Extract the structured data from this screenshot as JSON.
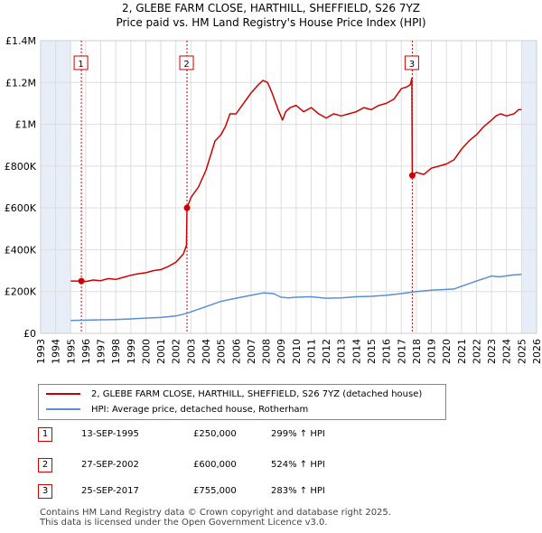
{
  "title_line1": "2, GLEBE FARM CLOSE, HARTHILL, SHEFFIELD, S26 7YZ",
  "title_line2": "Price paid vs. HM Land Registry's House Price Index (HPI)",
  "legend": {
    "property_label": "2, GLEBE FARM CLOSE, HARTHILL, SHEFFIELD, S26 7YZ (detached house)",
    "hpi_label": "HPI: Average price, detached house, Rotherham"
  },
  "colors": {
    "property": "#cc0000",
    "hpi": "#5b8fd0",
    "grid": "#dddddd",
    "band": "#e8eef7"
  },
  "sales": [
    {
      "num": "1",
      "date": "13-SEP-1995",
      "price": "£250,000",
      "hpi": "299% ↑ HPI"
    },
    {
      "num": "2",
      "date": "27-SEP-2002",
      "price": "£600,000",
      "hpi": "524% ↑ HPI"
    },
    {
      "num": "3",
      "date": "25-SEP-2017",
      "price": "£755,000",
      "hpi": "283% ↑ HPI"
    }
  ],
  "footer_line1": "Contains HM Land Registry data © Crown copyright and database right 2025.",
  "footer_line2": "This data is licensed under the Open Government Licence v3.0.",
  "chart_data": {
    "type": "line",
    "xlim": [
      1993,
      2026
    ],
    "ylim": [
      0,
      1400000
    ],
    "x_ticks": [
      1993,
      1994,
      1995,
      1996,
      1997,
      1998,
      1999,
      2000,
      2001,
      2002,
      2003,
      2004,
      2005,
      2006,
      2007,
      2008,
      2009,
      2010,
      2011,
      2012,
      2013,
      2014,
      2015,
      2016,
      2017,
      2018,
      2019,
      2020,
      2021,
      2022,
      2023,
      2024,
      2025,
      2026
    ],
    "y_ticks": [
      {
        "value": 0,
        "label": "£0"
      },
      {
        "value": 200000,
        "label": "£200K"
      },
      {
        "value": 400000,
        "label": "£400K"
      },
      {
        "value": 600000,
        "label": "£600K"
      },
      {
        "value": 800000,
        "label": "£800K"
      },
      {
        "value": 1000000,
        "label": "£1M"
      },
      {
        "value": 1200000,
        "label": "£1.2M"
      },
      {
        "value": 1400000,
        "label": "£1.4M"
      }
    ],
    "shaded_ranges": [
      [
        1993,
        1995.0
      ],
      [
        2025.0,
        2026
      ]
    ],
    "sale_points": [
      {
        "label": "1",
        "x": 1995.71,
        "y": 250000
      },
      {
        "label": "2",
        "x": 2002.74,
        "y": 600000
      },
      {
        "label": "3",
        "x": 2017.73,
        "y": 755000
      }
    ],
    "series": [
      {
        "name": "2, GLEBE FARM CLOSE, HARTHILL, SHEFFIELD, S26 7YZ (detached house)",
        "x": [
          1995.0,
          1995.71,
          1996.0,
          1996.5,
          1997.0,
          1997.5,
          1998.0,
          1998.5,
          1999.0,
          1999.5,
          2000.0,
          2000.5,
          2001.0,
          2001.5,
          2002.0,
          2002.5,
          2002.7,
          2002.74,
          2003.0,
          2003.5,
          2004.0,
          2004.3,
          2004.6,
          2005.0,
          2005.3,
          2005.6,
          2006.0,
          2006.5,
          2007.0,
          2007.5,
          2007.8,
          2008.1,
          2008.4,
          2008.8,
          2009.1,
          2009.3,
          2009.6,
          2010.0,
          2010.5,
          2011.0,
          2011.5,
          2012.0,
          2012.5,
          2013.0,
          2013.5,
          2014.0,
          2014.5,
          2015.0,
          2015.5,
          2016.0,
          2016.5,
          2017.0,
          2017.4,
          2017.6,
          2017.7,
          2017.73,
          2018.0,
          2018.5,
          2019.0,
          2019.5,
          2020.0,
          2020.5,
          2021.0,
          2021.5,
          2022.0,
          2022.5,
          2023.0,
          2023.3,
          2023.6,
          2024.0,
          2024.5,
          2024.8,
          2025.0
        ],
        "y": [
          250000,
          250000,
          248000,
          255000,
          252000,
          262000,
          258000,
          268000,
          278000,
          285000,
          290000,
          300000,
          305000,
          320000,
          340000,
          380000,
          420000,
          600000,
          650000,
          700000,
          780000,
          850000,
          920000,
          950000,
          990000,
          1050000,
          1050000,
          1100000,
          1150000,
          1190000,
          1210000,
          1200000,
          1150000,
          1070000,
          1020000,
          1060000,
          1080000,
          1090000,
          1060000,
          1080000,
          1050000,
          1030000,
          1050000,
          1040000,
          1050000,
          1060000,
          1080000,
          1070000,
          1090000,
          1100000,
          1120000,
          1170000,
          1180000,
          1190000,
          1220000,
          755000,
          770000,
          760000,
          790000,
          800000,
          810000,
          830000,
          880000,
          920000,
          950000,
          990000,
          1020000,
          1040000,
          1050000,
          1040000,
          1050000,
          1070000,
          1070000
        ]
      },
      {
        "name": "HPI: Average price, detached house, Rotherham",
        "x": [
          1995.0,
          1996.0,
          1997.0,
          1998.0,
          1999.0,
          2000.0,
          2001.0,
          2002.0,
          2002.74,
          2003.0,
          2004.0,
          2005.0,
          2006.0,
          2007.0,
          2007.8,
          2008.5,
          2009.0,
          2009.5,
          2010.0,
          2011.0,
          2012.0,
          2013.0,
          2014.0,
          2015.0,
          2016.0,
          2017.0,
          2017.73,
          2018.0,
          2019.0,
          2020.0,
          2020.5,
          2021.0,
          2022.0,
          2022.5,
          2023.0,
          2023.5,
          2024.0,
          2024.5,
          2025.0
        ],
        "y": [
          62000,
          63000,
          65000,
          66000,
          69000,
          73000,
          76000,
          83000,
          96000,
          103000,
          128000,
          153000,
          168000,
          182000,
          193000,
          190000,
          173000,
          170000,
          173000,
          175000,
          168000,
          170000,
          175000,
          177000,
          182000,
          190000,
          197000,
          200000,
          206000,
          210000,
          212000,
          225000,
          250000,
          262000,
          275000,
          270000,
          275000,
          280000,
          282000
        ]
      }
    ]
  }
}
